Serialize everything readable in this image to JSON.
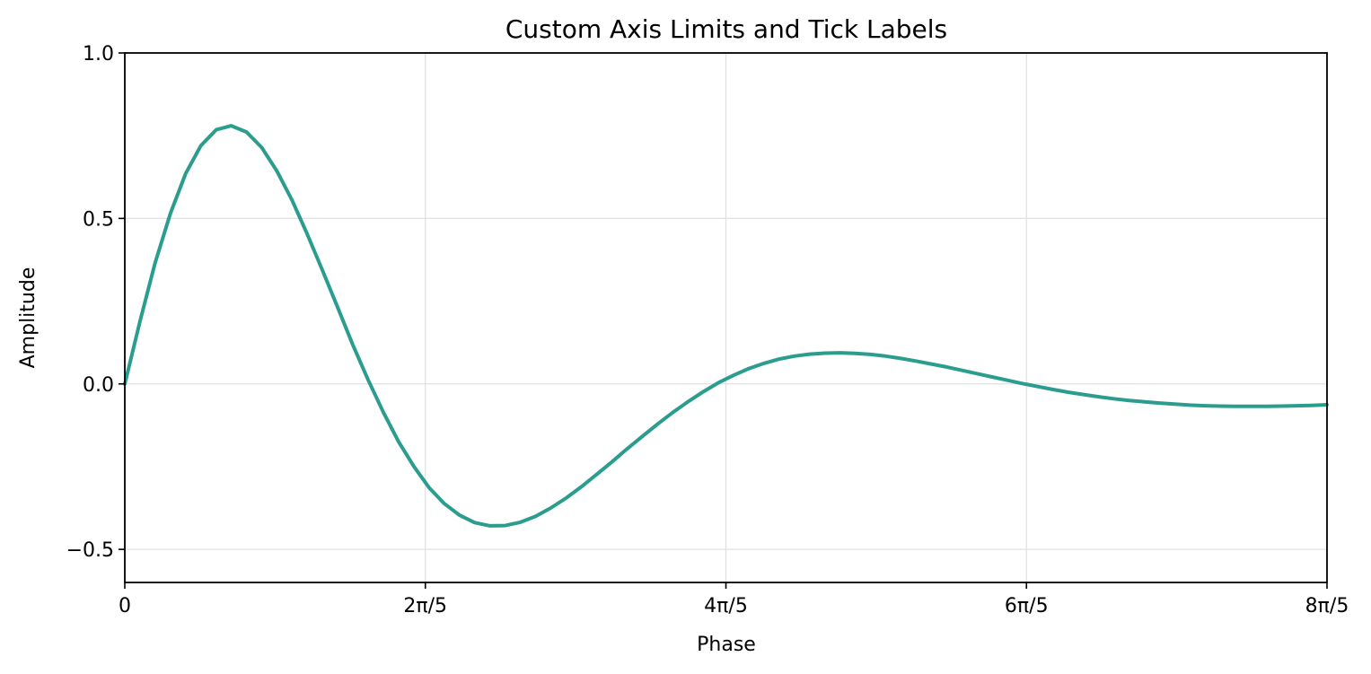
{
  "chart_data": {
    "type": "line",
    "title": "Custom Axis Limits and Tick Labels",
    "xlabel": "Phase",
    "ylabel": "Amplitude",
    "xlim": [
      0,
      5.0265
    ],
    "ylim": [
      -0.6,
      1.0
    ],
    "grid": true,
    "line_color": "#2a9d8f",
    "xticks": [
      {
        "value": 0,
        "label": "0"
      },
      {
        "value": 1.2566,
        "label": "2π/5"
      },
      {
        "value": 2.5133,
        "label": "4π/5"
      },
      {
        "value": 3.7699,
        "label": "6π/5"
      },
      {
        "value": 5.0265,
        "label": "8π/5"
      }
    ],
    "yticks": [
      {
        "value": -0.5,
        "label": "−0.5"
      },
      {
        "value": 0.0,
        "label": "0.0"
      },
      {
        "value": 0.5,
        "label": "0.5"
      },
      {
        "value": 1.0,
        "label": "1.0"
      }
    ],
    "series": [
      {
        "x": [
          0.0,
          0.064,
          0.127,
          0.191,
          0.254,
          0.318,
          0.382,
          0.445,
          0.509,
          0.573,
          0.636,
          0.7,
          0.763,
          0.827,
          0.891,
          0.954,
          1.018,
          1.082,
          1.145,
          1.209,
          1.272,
          1.336,
          1.4,
          1.463,
          1.527,
          1.59,
          1.654,
          1.718,
          1.781,
          1.845,
          1.909,
          1.972,
          2.036,
          2.099,
          2.163,
          2.227,
          2.29,
          2.354,
          2.418,
          2.481,
          2.545,
          2.608,
          2.672,
          2.736,
          2.799,
          2.863,
          2.927,
          2.99,
          3.054,
          3.117,
          3.181,
          3.245,
          3.308,
          3.372,
          3.436,
          3.499,
          3.563,
          3.626,
          3.69,
          3.754,
          3.817,
          3.881,
          3.944,
          4.008,
          4.072,
          4.135,
          4.199,
          4.263,
          4.326,
          4.39,
          4.453,
          4.517,
          4.581,
          4.644,
          4.708,
          4.772,
          4.835,
          4.899,
          4.962,
          5.026
        ],
        "y": [
          0.0,
          0.19,
          0.366,
          0.516,
          0.635,
          0.72,
          0.768,
          0.78,
          0.761,
          0.714,
          0.643,
          0.554,
          0.452,
          0.342,
          0.229,
          0.117,
          0.011,
          -0.087,
          -0.175,
          -0.25,
          -0.313,
          -0.362,
          -0.397,
          -0.419,
          -0.429,
          -0.428,
          -0.418,
          -0.4,
          -0.375,
          -0.345,
          -0.311,
          -0.274,
          -0.236,
          -0.197,
          -0.159,
          -0.122,
          -0.087,
          -0.054,
          -0.024,
          0.003,
          0.026,
          0.046,
          0.062,
          0.075,
          0.084,
          0.09,
          0.093,
          0.094,
          0.092,
          0.089,
          0.084,
          0.077,
          0.069,
          0.06,
          0.051,
          0.041,
          0.031,
          0.021,
          0.011,
          0.001,
          -0.008,
          -0.017,
          -0.025,
          -0.032,
          -0.039,
          -0.045,
          -0.05,
          -0.054,
          -0.058,
          -0.061,
          -0.064,
          -0.066,
          -0.067,
          -0.068,
          -0.068,
          -0.068,
          -0.067,
          -0.066,
          -0.065,
          -0.063
        ]
      }
    ]
  }
}
